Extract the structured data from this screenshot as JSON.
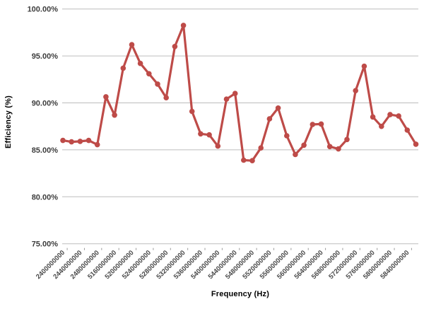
{
  "chart_data": {
    "type": "line",
    "title": "",
    "xlabel": "Frequency (Hz)",
    "ylabel": "Efficiency (%)",
    "ylim": [
      75,
      100
    ],
    "grid": "horizontal",
    "legend": "none",
    "ytick_values": [
      100,
      95,
      90,
      85,
      80,
      75
    ],
    "ytick_labels": [
      "100.00%",
      "95.00%",
      "90.00%",
      "85.00%",
      "80.00%",
      "75.00%"
    ],
    "categories": [
      "2400000000",
      "2440000000",
      "2480000000",
      "5160000000",
      "5200000000",
      "5240000000",
      "5280000000",
      "5320000000",
      "5360000000",
      "5400000000",
      "5440000000",
      "5480000000",
      "5520000000",
      "5560000000",
      "5600000000",
      "5640000000",
      "5680000000",
      "5720000000",
      "5760000000",
      "5800000000",
      "5840000000"
    ],
    "label_every_n_points": 2,
    "series": [
      {
        "name": "Efficiency",
        "color": "#BE4B48",
        "values": [
          86.0,
          85.85,
          85.9,
          86.0,
          85.55,
          90.65,
          88.7,
          93.7,
          96.2,
          94.2,
          93.1,
          92.0,
          90.55,
          96.0,
          98.25,
          89.1,
          86.7,
          86.6,
          85.4,
          90.4,
          91.0,
          83.9,
          83.85,
          85.2,
          88.3,
          89.45,
          86.5,
          84.5,
          85.5,
          87.7,
          87.75,
          85.35,
          85.1,
          86.1,
          91.3,
          93.9,
          88.5,
          87.5,
          88.75,
          88.6,
          87.1,
          85.6
        ]
      }
    ],
    "gridline_color": "#BDBDBD",
    "tick_color": "#9a9a9a"
  }
}
